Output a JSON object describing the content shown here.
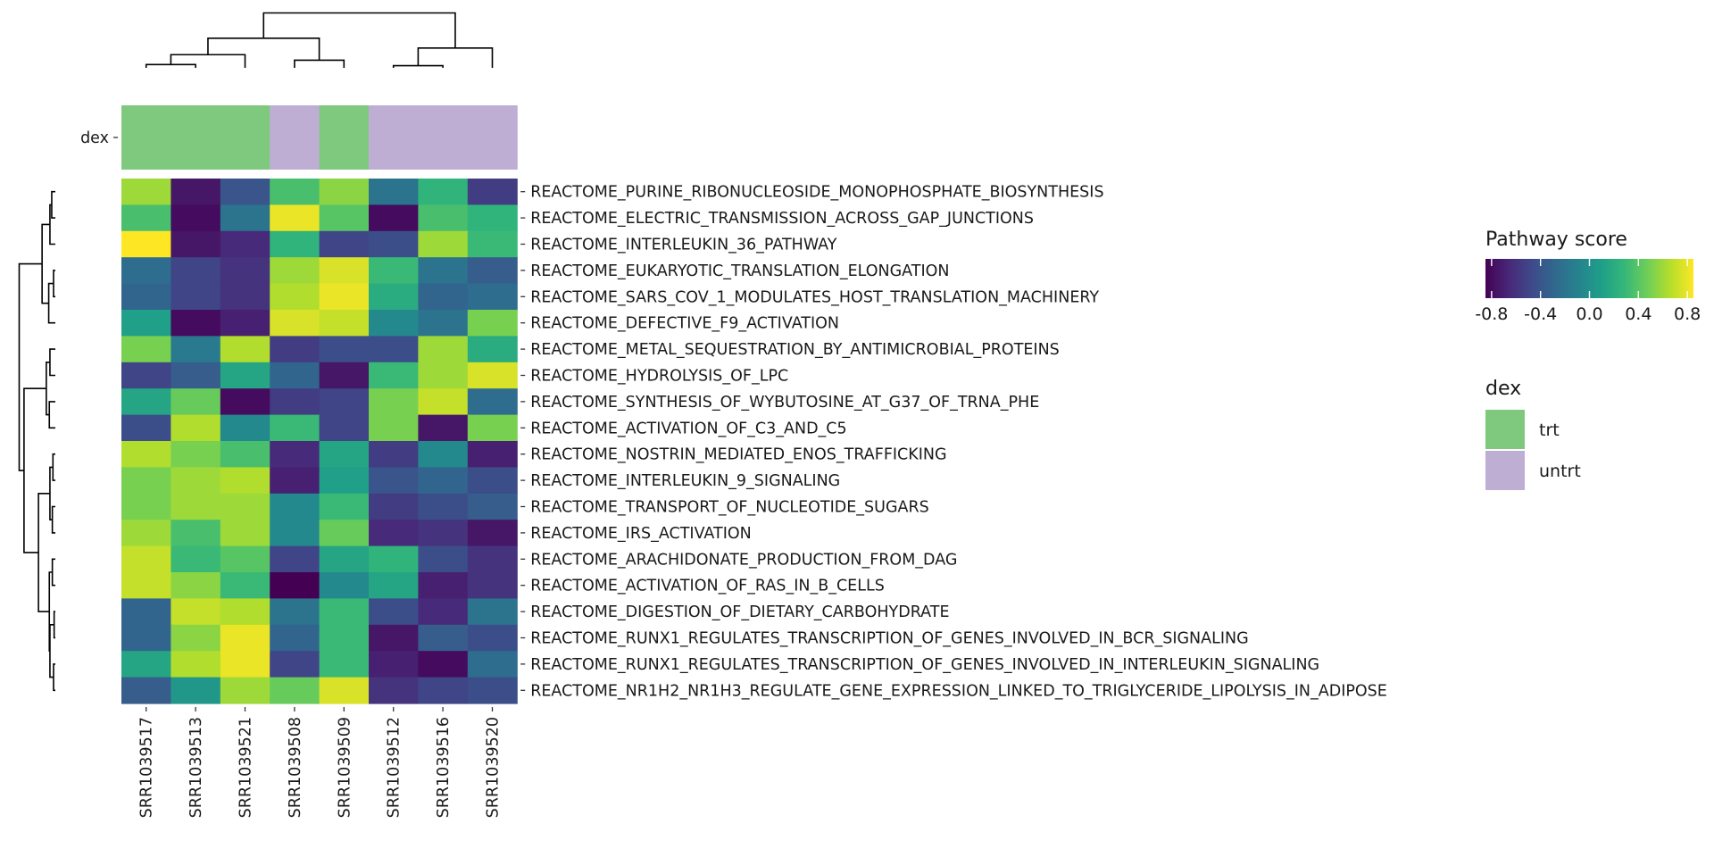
{
  "chart_data": {
    "type": "heatmap",
    "samples": [
      "SRR1039517",
      "SRR1039513",
      "SRR1039521",
      "SRR1039508",
      "SRR1039509",
      "SRR1039512",
      "SRR1039516",
      "SRR1039520"
    ],
    "annotation": {
      "name": "dex",
      "values": [
        "trt",
        "trt",
        "trt",
        "untrt",
        "trt",
        "untrt",
        "untrt",
        "untrt"
      ]
    },
    "pathways": [
      "REACTOME_PURINE_RIBONUCLEOSIDE_MONOPHOSPHATE_BIOSYNTHESIS",
      "REACTOME_ELECTRIC_TRANSMISSION_ACROSS_GAP_JUNCTIONS",
      "REACTOME_INTERLEUKIN_36_PATHWAY",
      "REACTOME_EUKARYOTIC_TRANSLATION_ELONGATION",
      "REACTOME_SARS_COV_1_MODULATES_HOST_TRANSLATION_MACHINERY",
      "REACTOME_DEFECTIVE_F9_ACTIVATION",
      "REACTOME_METAL_SEQUESTRATION_BY_ANTIMICROBIAL_PROTEINS",
      "REACTOME_HYDROLYSIS_OF_LPC",
      "REACTOME_SYNTHESIS_OF_WYBUTOSINE_AT_G37_OF_TRNA_PHE",
      "REACTOME_ACTIVATION_OF_C3_AND_C5",
      "REACTOME_NOSTRIN_MEDIATED_ENOS_TRAFFICKING",
      "REACTOME_INTERLEUKIN_9_SIGNALING",
      "REACTOME_TRANSPORT_OF_NUCLEOTIDE_SUGARS",
      "REACTOME_IRS_ACTIVATION",
      "REACTOME_ARACHIDONATE_PRODUCTION_FROM_DAG",
      "REACTOME_ACTIVATION_OF_RAS_IN_B_CELLS",
      "REACTOME_DIGESTION_OF_DIETARY_CARBOHYDRATE",
      "REACTOME_RUNX1_REGULATES_TRANSCRIPTION_OF_GENES_INVOLVED_IN_BCR_SIGNALING",
      "REACTOME_RUNX1_REGULATES_TRANSCRIPTION_OF_GENES_INVOLVED_IN_INTERLEUKIN_SIGNALING",
      "REACTOME_NR1H2_NR1H3_REGULATE_GENE_EXPRESSION_LINKED_TO_TRIGLYCERIDE_LIPOLYSIS_IN_ADIPOSE"
    ],
    "values": [
      [
        0.6,
        -0.75,
        -0.4,
        0.35,
        0.55,
        -0.2,
        0.25,
        -0.55
      ],
      [
        0.35,
        -0.8,
        -0.2,
        0.8,
        0.4,
        -0.8,
        0.35,
        0.25
      ],
      [
        0.85,
        -0.75,
        -0.65,
        0.25,
        -0.5,
        -0.45,
        0.6,
        0.3
      ],
      [
        -0.25,
        -0.5,
        -0.6,
        0.6,
        0.75,
        0.3,
        -0.2,
        -0.35
      ],
      [
        -0.3,
        -0.5,
        -0.6,
        0.65,
        0.8,
        0.2,
        -0.3,
        -0.25
      ],
      [
        0.1,
        -0.8,
        -0.7,
        0.75,
        0.7,
        -0.05,
        -0.2,
        0.5
      ],
      [
        0.5,
        -0.15,
        0.65,
        -0.55,
        -0.45,
        -0.45,
        0.6,
        0.2
      ],
      [
        -0.5,
        -0.35,
        0.15,
        -0.3,
        -0.75,
        0.3,
        0.6,
        0.75
      ],
      [
        0.15,
        0.45,
        -0.8,
        -0.55,
        -0.5,
        0.5,
        0.7,
        -0.25
      ],
      [
        -0.45,
        0.65,
        -0.05,
        0.3,
        -0.5,
        0.5,
        -0.75,
        0.5
      ],
      [
        0.65,
        0.5,
        0.35,
        -0.65,
        0.15,
        -0.55,
        -0.05,
        -0.7
      ],
      [
        0.5,
        0.6,
        0.65,
        -0.7,
        0.1,
        -0.4,
        -0.3,
        -0.45
      ],
      [
        0.5,
        0.6,
        0.6,
        -0.05,
        0.3,
        -0.55,
        -0.45,
        -0.35
      ],
      [
        0.6,
        0.35,
        0.6,
        -0.05,
        0.45,
        -0.65,
        -0.6,
        -0.75
      ],
      [
        0.7,
        0.3,
        0.4,
        -0.5,
        0.15,
        0.25,
        -0.45,
        -0.6
      ],
      [
        0.7,
        0.55,
        0.3,
        -0.85,
        -0.05,
        0.15,
        -0.7,
        -0.6
      ],
      [
        -0.3,
        0.7,
        0.65,
        -0.2,
        0.3,
        -0.45,
        -0.65,
        -0.2
      ],
      [
        -0.3,
        0.55,
        0.8,
        -0.3,
        0.3,
        -0.75,
        -0.35,
        -0.45
      ],
      [
        0.15,
        0.65,
        0.8,
        -0.5,
        0.3,
        -0.7,
        -0.8,
        -0.25
      ],
      [
        -0.35,
        0.05,
        0.6,
        0.45,
        0.75,
        -0.6,
        -0.5,
        -0.45
      ]
    ],
    "color_scale": {
      "name": "Pathway score",
      "palette": "viridis",
      "range": [
        -0.85,
        0.85
      ],
      "ticks": [
        "-0.8",
        "-0.4",
        "0.0",
        "0.4",
        "0.8"
      ],
      "tick_values": [
        -0.8,
        -0.4,
        0.0,
        0.4,
        0.8
      ],
      "colors": [
        "#440154",
        "#482878",
        "#3e4a89",
        "#31688e",
        "#26828e",
        "#1f9e89",
        "#35b779",
        "#6ece58",
        "#b5de2b",
        "#fde725"
      ]
    },
    "annotation_legend": {
      "title": "dex",
      "entries": [
        {
          "label": "trt",
          "color": "#7fc97f"
        },
        {
          "label": "untrt",
          "color": "#beaed4"
        }
      ]
    },
    "legend_position": "right"
  }
}
